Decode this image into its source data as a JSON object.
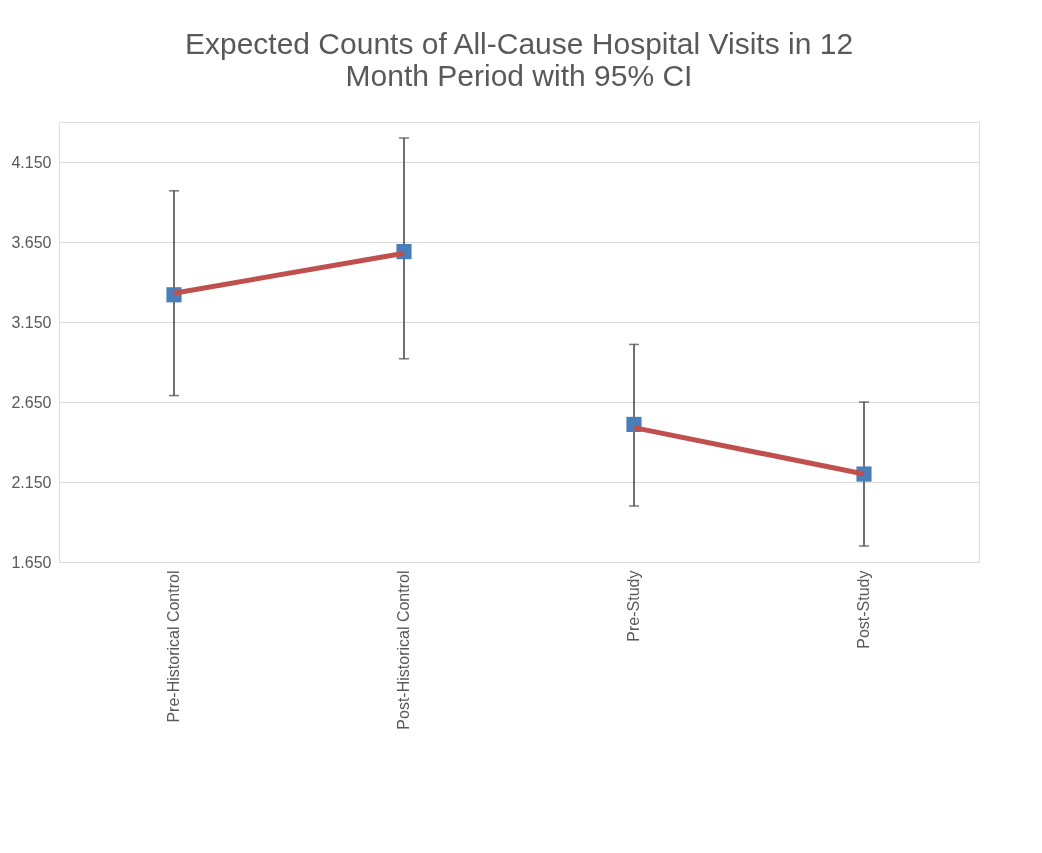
{
  "chart_data": {
    "type": "scatter",
    "title": "Expected Counts of All-Cause Hospital Visits in 12 Month Period with 95% CI",
    "categories": [
      "Pre-Historical Control",
      "Post-Historical Control",
      "Pre-Study",
      "Post-Study"
    ],
    "series": [
      {
        "color": "#4a7ebb",
        "marker": "square",
        "values": [
          3.32,
          3.59,
          2.51,
          2.2
        ],
        "errors": [
          [
            2.69,
            3.97
          ],
          [
            2.92,
            4.3
          ],
          [
            2.0,
            3.01
          ],
          [
            1.75,
            2.65
          ]
        ]
      },
      {
        "type": "line",
        "color": "#c0504d",
        "marker": "none",
        "values": [
          3.33,
          3.58,
          null,
          null
        ]
      },
      {
        "type": "line",
        "color": "#c0504d",
        "marker": "none",
        "values": [
          null,
          null,
          2.49,
          2.2
        ]
      }
    ],
    "ylim": [
      1.65,
      4.4
    ],
    "yticks": [
      {
        "value": 1.65,
        "label": "1.650"
      },
      {
        "value": 2.15,
        "label": "2.150"
      },
      {
        "value": 2.65,
        "label": "2.650"
      },
      {
        "value": 3.15,
        "label": "3.150"
      },
      {
        "value": 3.65,
        "label": "3.650"
      },
      {
        "value": 4.15,
        "label": "4.150"
      }
    ],
    "grid": "y"
  }
}
